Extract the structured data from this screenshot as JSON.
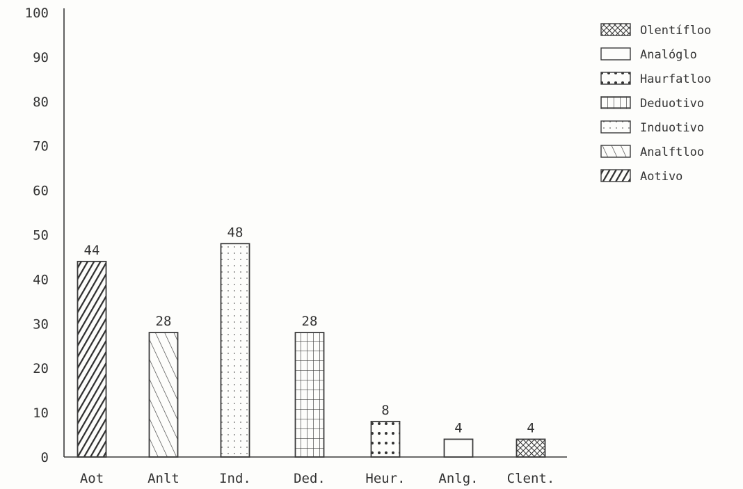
{
  "chart_data": {
    "type": "bar",
    "title": "",
    "xlabel": "",
    "ylabel": "",
    "ylim": [
      0,
      100
    ],
    "yticks": [
      0,
      10,
      20,
      30,
      40,
      50,
      60,
      70,
      80,
      90,
      100
    ],
    "categories": [
      "Aot",
      "Anlt",
      "Ind.",
      "Ded.",
      "Heur.",
      "Anlg.",
      "Clent."
    ],
    "values": [
      44,
      28,
      48,
      28,
      8,
      4,
      4
    ],
    "value_labels": [
      "44",
      "28",
      "48",
      "28",
      "8",
      "4",
      "4"
    ],
    "bar_patterns": [
      "diagonal-heavy",
      "diagonal-light",
      "dots",
      "grid",
      "dots-heavy",
      "blank",
      "crosshatch"
    ],
    "legend": {
      "placement": "top-right",
      "entries": [
        {
          "label": "Olentífloo",
          "pattern": "crosshatch"
        },
        {
          "label": "Analóglo",
          "pattern": "blank"
        },
        {
          "label": "Haurfatloo",
          "pattern": "dots-heavy"
        },
        {
          "label": "Deduotivo",
          "pattern": "grid"
        },
        {
          "label": "Induotivo",
          "pattern": "dots"
        },
        {
          "label": "Analftloo",
          "pattern": "diagonal-light"
        },
        {
          "label": "Aotivo",
          "pattern": "diagonal-heavy"
        }
      ]
    },
    "grid": false,
    "colors": {
      "ink": "#3a3a3a",
      "background": "#fdfdfb"
    }
  }
}
